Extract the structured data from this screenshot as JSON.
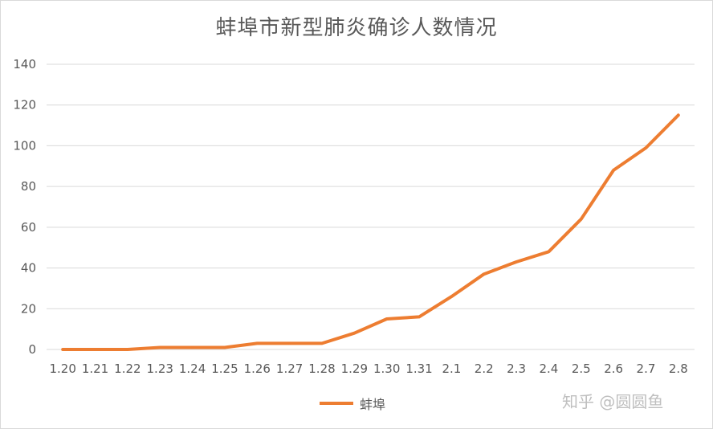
{
  "chart_data": {
    "type": "line",
    "title": "蚌埠市新型肺炎确诊人数情况",
    "categories": [
      "1.20",
      "1.21",
      "1.22",
      "1.23",
      "1.24",
      "1.25",
      "1.26",
      "1.27",
      "1.28",
      "1.29",
      "1.30",
      "1.31",
      "2.1",
      "2.2",
      "2.3",
      "2.4",
      "2.5",
      "2.6",
      "2.7",
      "2.8"
    ],
    "series": [
      {
        "name": "蚌埠",
        "color": "#ED7D31",
        "values": [
          0,
          0,
          0,
          1,
          1,
          1,
          3,
          3,
          3,
          8,
          15,
          16,
          26,
          37,
          43,
          48,
          64,
          88,
          99,
          115
        ]
      }
    ],
    "ylim": [
      0,
      140
    ],
    "yticks": [
      0,
      20,
      40,
      60,
      80,
      100,
      120,
      140
    ],
    "grid": true,
    "legend": "bottom"
  },
  "watermark": "知乎 @圆圆鱼",
  "colors": {
    "grid": "#d9d9d9",
    "text": "#595959",
    "series": "#ED7D31"
  }
}
